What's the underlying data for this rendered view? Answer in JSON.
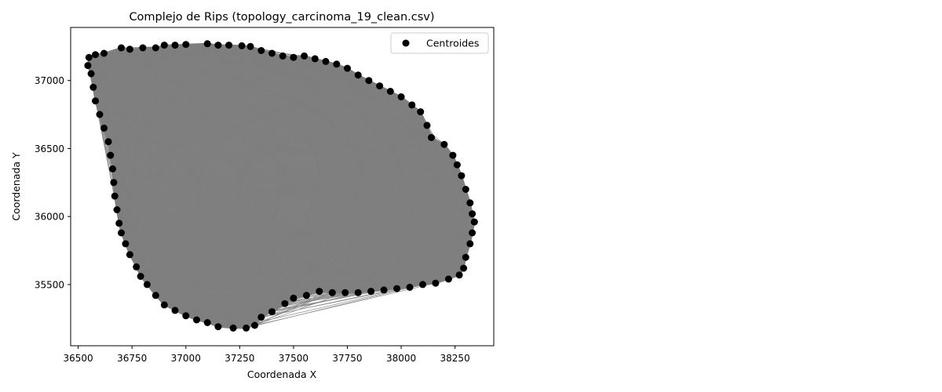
{
  "chart_data": {
    "type": "scatter",
    "title": "Complejo de Rips (topology_carcinoma_19_clean.csv)",
    "xlabel": "Coordenada X",
    "ylabel": "Coordenada Y",
    "xlim": [
      36465,
      38430
    ],
    "ylim": [
      35050,
      37390
    ],
    "xticks": [
      36500,
      36750,
      37000,
      37250,
      37500,
      37750,
      38000,
      38250
    ],
    "yticks": [
      35500,
      36000,
      36500,
      37000
    ],
    "xtick_labels": [
      "36500",
      "36750",
      "37000",
      "37250",
      "37500",
      "37750",
      "38000",
      "38250"
    ],
    "ytick_labels": [
      "35500",
      "36000",
      "36500",
      "37000"
    ],
    "legend": {
      "position": "top-right",
      "entries": [
        "Centroides"
      ]
    },
    "grid": false,
    "colors": {
      "points": "#000000",
      "complex_fill": "#808080",
      "edges": "#7f7f7f"
    },
    "series": [
      {
        "name": "Centroides",
        "points": [
          [
            36550,
            37170
          ],
          [
            36580,
            37190
          ],
          [
            36620,
            37200
          ],
          [
            36700,
            37240
          ],
          [
            36740,
            37230
          ],
          [
            36800,
            37240
          ],
          [
            36860,
            37240
          ],
          [
            36900,
            37260
          ],
          [
            36950,
            37260
          ],
          [
            37000,
            37265
          ],
          [
            37100,
            37270
          ],
          [
            37150,
            37260
          ],
          [
            37200,
            37260
          ],
          [
            37260,
            37255
          ],
          [
            37300,
            37250
          ],
          [
            37350,
            37220
          ],
          [
            37400,
            37200
          ],
          [
            37450,
            37180
          ],
          [
            37500,
            37170
          ],
          [
            37550,
            37180
          ],
          [
            37600,
            37160
          ],
          [
            37650,
            37140
          ],
          [
            37700,
            37120
          ],
          [
            37750,
            37090
          ],
          [
            37800,
            37040
          ],
          [
            37850,
            37000
          ],
          [
            37900,
            36960
          ],
          [
            37950,
            36920
          ],
          [
            38000,
            36880
          ],
          [
            38050,
            36820
          ],
          [
            38090,
            36770
          ],
          [
            38120,
            36670
          ],
          [
            38140,
            36580
          ],
          [
            38200,
            36530
          ],
          [
            38240,
            36450
          ],
          [
            38260,
            36380
          ],
          [
            38280,
            36300
          ],
          [
            38300,
            36200
          ],
          [
            38320,
            36100
          ],
          [
            38330,
            36020
          ],
          [
            38340,
            35960
          ],
          [
            38330,
            35880
          ],
          [
            38320,
            35800
          ],
          [
            38300,
            35700
          ],
          [
            38290,
            35620
          ],
          [
            38270,
            35570
          ],
          [
            38220,
            35540
          ],
          [
            38160,
            35510
          ],
          [
            38100,
            35500
          ],
          [
            38040,
            35480
          ],
          [
            37980,
            35470
          ],
          [
            37920,
            35460
          ],
          [
            37860,
            35450
          ],
          [
            37800,
            35440
          ],
          [
            37740,
            35440
          ],
          [
            37680,
            35440
          ],
          [
            37620,
            35450
          ],
          [
            37560,
            35420
          ],
          [
            37500,
            35400
          ],
          [
            37460,
            35360
          ],
          [
            37400,
            35300
          ],
          [
            37350,
            35260
          ],
          [
            37320,
            35200
          ],
          [
            37280,
            35180
          ],
          [
            37220,
            35180
          ],
          [
            37150,
            35190
          ],
          [
            37100,
            35220
          ],
          [
            37050,
            35240
          ],
          [
            37000,
            35270
          ],
          [
            36950,
            35310
          ],
          [
            36900,
            35350
          ],
          [
            36860,
            35420
          ],
          [
            36820,
            35500
          ],
          [
            36790,
            35560
          ],
          [
            36770,
            35630
          ],
          [
            36740,
            35720
          ],
          [
            36720,
            35800
          ],
          [
            36700,
            35880
          ],
          [
            36690,
            35950
          ],
          [
            36680,
            36050
          ],
          [
            36670,
            36150
          ],
          [
            36665,
            36250
          ],
          [
            36660,
            36350
          ],
          [
            36650,
            36450
          ],
          [
            36640,
            36550
          ],
          [
            36620,
            36650
          ],
          [
            36600,
            36750
          ],
          [
            36580,
            36850
          ],
          [
            36570,
            36950
          ],
          [
            36560,
            37050
          ],
          [
            36545,
            37110
          ]
        ]
      }
    ]
  }
}
